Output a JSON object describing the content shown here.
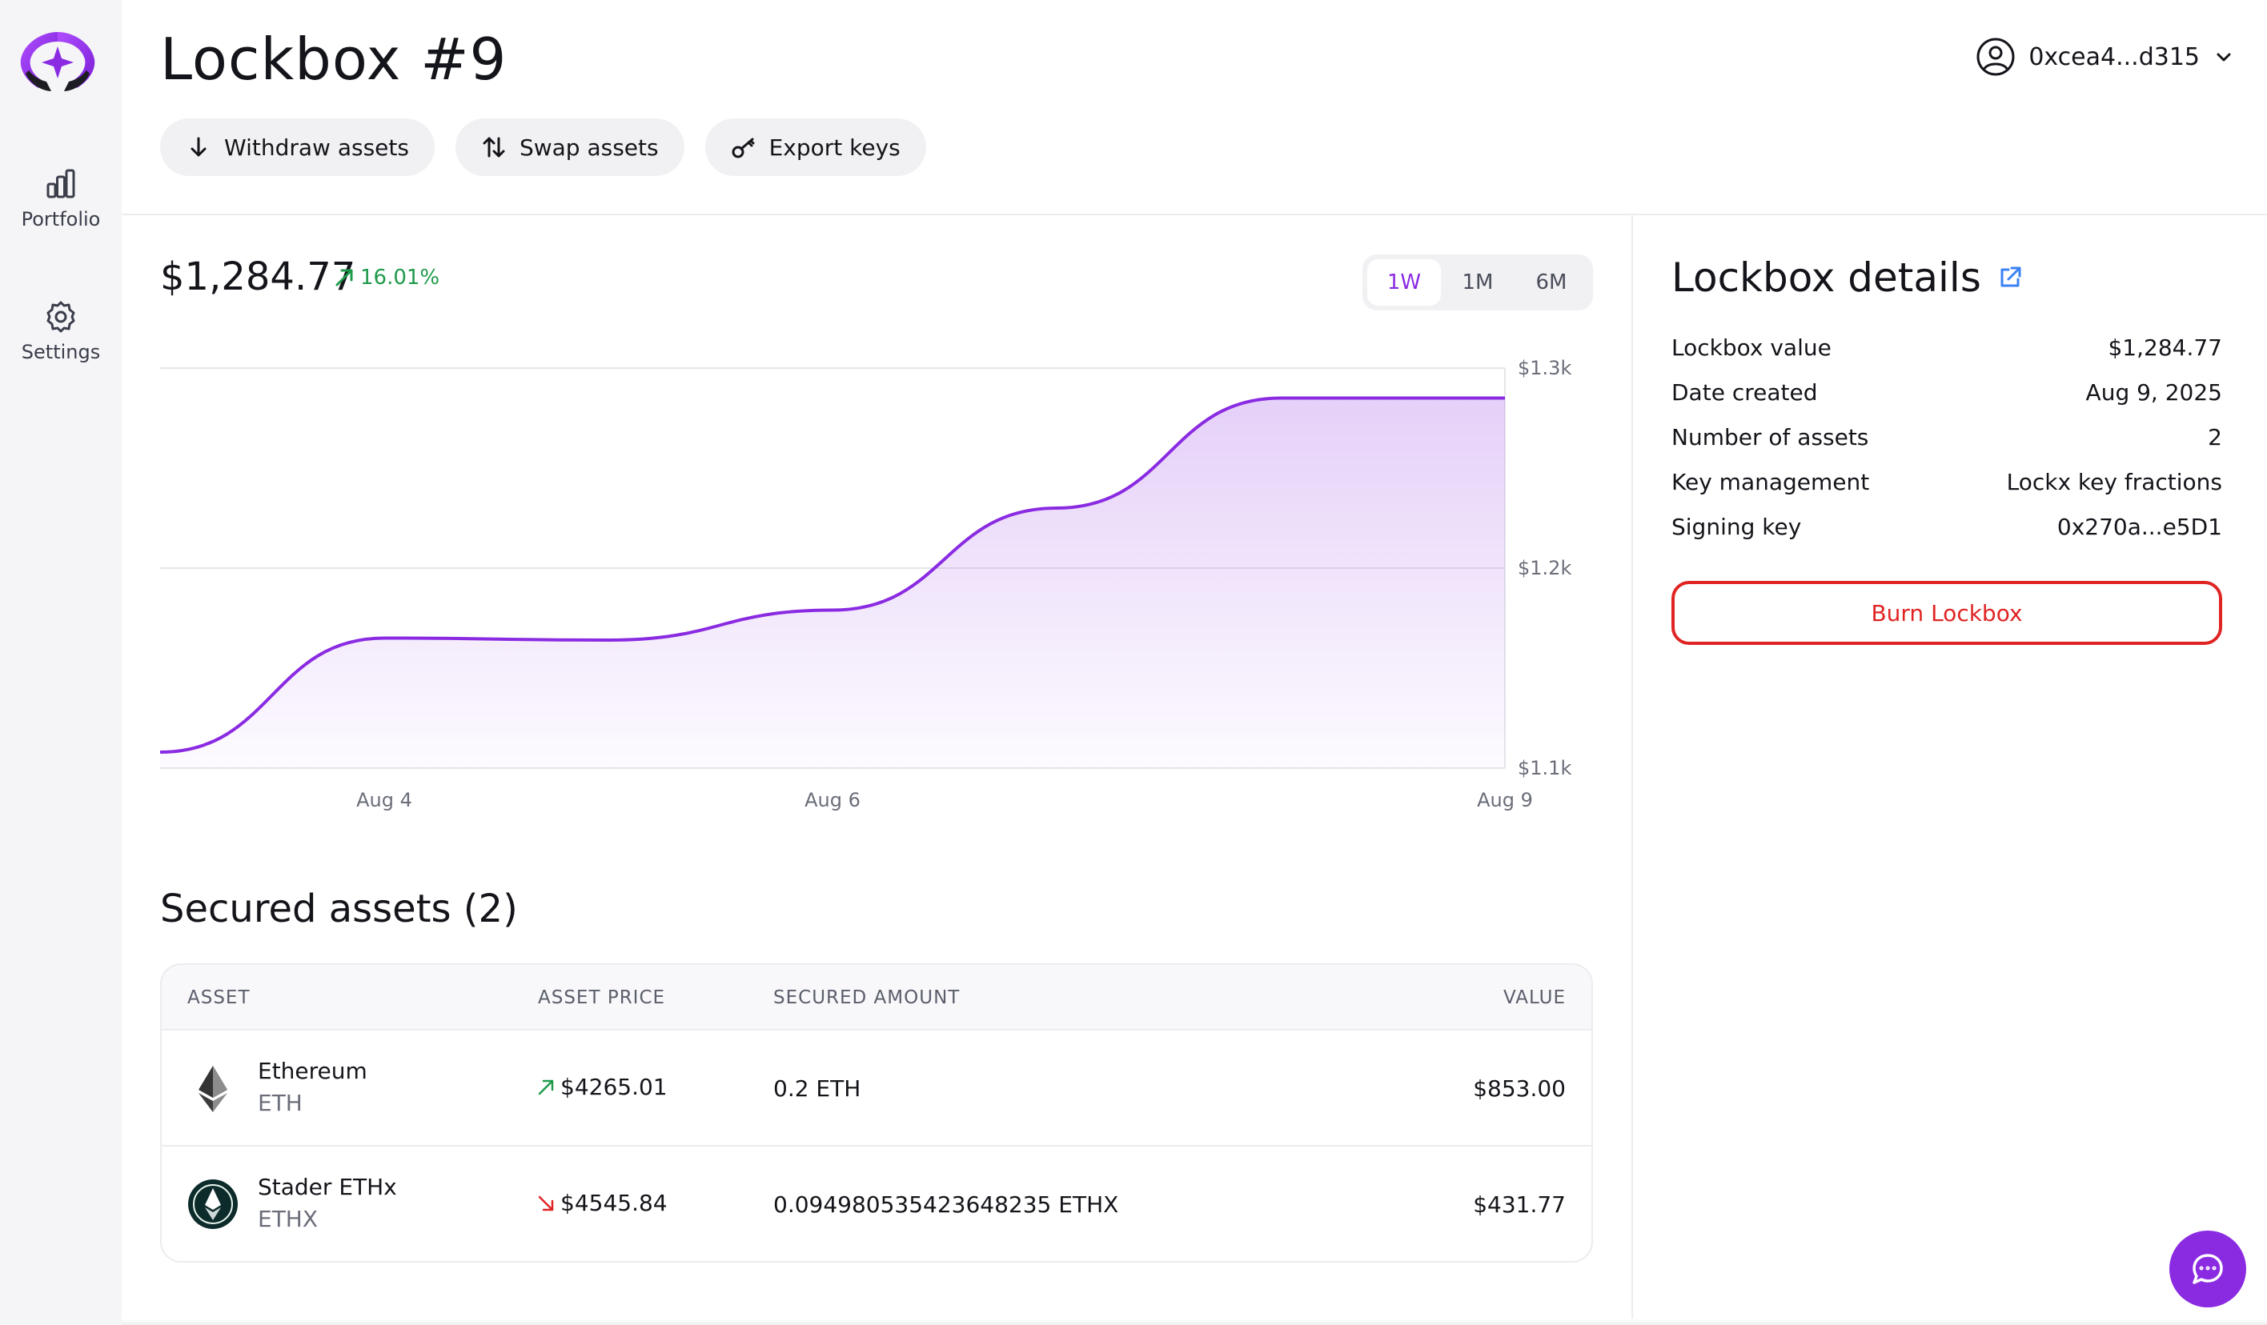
{
  "app": {
    "title": "Lockbox #9",
    "logo_icon": "lockx-logo",
    "accent_color": "#8a2be2",
    "positive_color": "#1f9a4b",
    "negative_color": "#e02424"
  },
  "sidebar": {
    "items": [
      {
        "label": "Portfolio",
        "icon": "bar-chart-icon"
      },
      {
        "label": "Settings",
        "icon": "gear-icon"
      }
    ]
  },
  "header": {
    "actions": [
      {
        "label": "Withdraw assets",
        "icon": "arrow-down-icon"
      },
      {
        "label": "Swap assets",
        "icon": "swap-arrows-icon"
      },
      {
        "label": "Export keys",
        "icon": "key-icon"
      }
    ],
    "account": {
      "label": "0xcea4...d315",
      "icon": "user-circle-icon"
    }
  },
  "summary": {
    "balance": "$1,284.77",
    "change": "16.01%",
    "change_direction": "up"
  },
  "range_tabs": {
    "options": [
      "1W",
      "1M",
      "6M"
    ],
    "selected": "1W"
  },
  "chart_data": {
    "type": "area",
    "x": [
      "Aug 3",
      "Aug 4",
      "Aug 5",
      "Aug 6",
      "Aug 7",
      "Aug 8",
      "Aug 9"
    ],
    "y": [
      1108,
      1165,
      1164,
      1179,
      1230,
      1285,
      1285
    ],
    "x_tick_labels": [
      "Aug 4",
      "Aug 6",
      "Aug 9"
    ],
    "y_tick_labels": [
      "$1.3k",
      "$1.2k",
      "$1.1k"
    ],
    "ylim": [
      1100,
      1300
    ],
    "grid": true,
    "line_color": "#8a2be2"
  },
  "assets_section": {
    "title": "Secured assets (2)",
    "columns": [
      "ASSET",
      "ASSET PRICE",
      "SECURED AMOUNT",
      "VALUE"
    ],
    "rows": [
      {
        "name": "Ethereum",
        "symbol": "ETH",
        "price": "$4265.01",
        "price_direction": "up",
        "amount": "0.2 ETH",
        "value": "$853.00",
        "icon": "ethereum-icon"
      },
      {
        "name": "Stader ETHx",
        "symbol": "ETHX",
        "price": "$4545.84",
        "price_direction": "down",
        "amount": "0.094980535423648235 ETHX",
        "value": "$431.77",
        "icon": "stader-ethx-icon"
      }
    ]
  },
  "details": {
    "title": "Lockbox details",
    "rows": [
      {
        "label": "Lockbox value",
        "value": "$1,284.77"
      },
      {
        "label": "Date created",
        "value": "Aug 9, 2025"
      },
      {
        "label": "Number of assets",
        "value": "2"
      },
      {
        "label": "Key management",
        "value": "Lockx key fractions"
      },
      {
        "label": "Signing key",
        "value": "0x270a...e5D1"
      }
    ],
    "burn_label": "Burn Lockbox"
  },
  "chat": {
    "icon": "chat-bubble-icon"
  }
}
